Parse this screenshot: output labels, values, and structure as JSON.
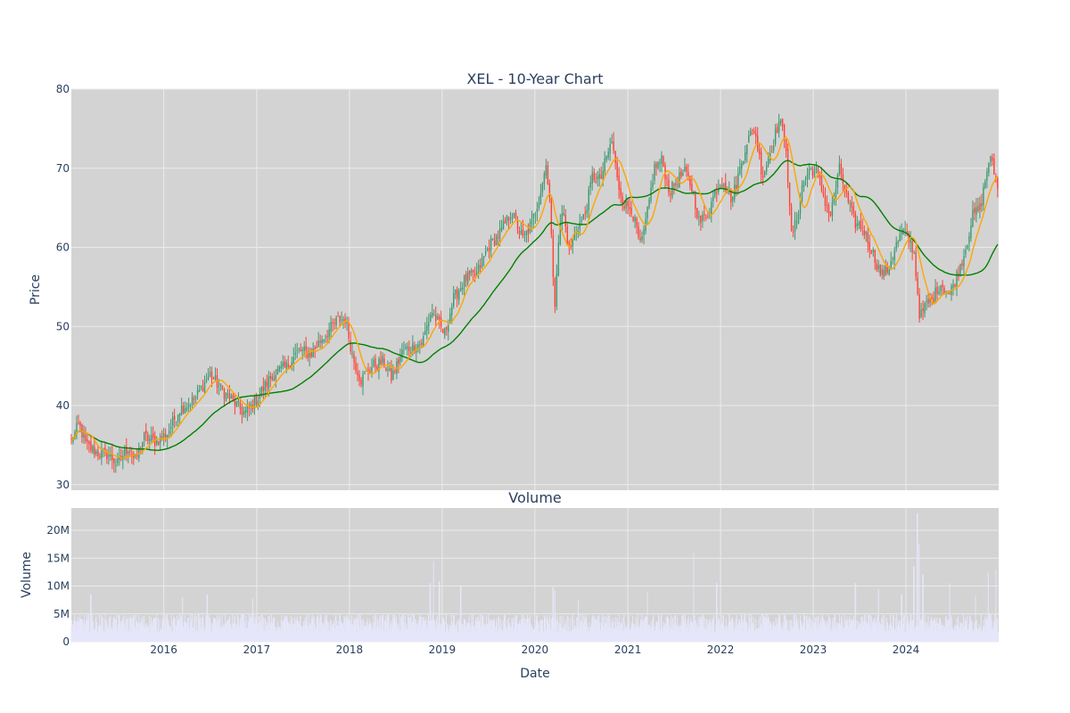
{
  "colors": {
    "plot_bg": "#d3d3d3",
    "grid": "#ebebeb",
    "increasing": "#3d9970",
    "decreasing": "#ff4136",
    "ma_short": "#ffa500",
    "ma_long": "#008000",
    "volume": "#e6e6fa",
    "text": "#2a3f5f"
  },
  "chart_data": [
    {
      "type": "candlestick",
      "title": "XEL - 10-Year Chart",
      "xlabel": "",
      "ylabel": "Price",
      "xlim": [
        "2015-01-02",
        "2024-12-31"
      ],
      "ylim": [
        29.3,
        80
      ],
      "yticks": [
        30,
        40,
        50,
        60,
        70,
        80
      ],
      "grid": true,
      "anchors": [
        [
          "2015-01-02",
          35.5
        ],
        [
          "2015-02-01",
          37.6
        ],
        [
          "2015-03-01",
          35.0
        ],
        [
          "2015-04-15",
          34.0
        ],
        [
          "2015-06-01",
          33.8
        ],
        [
          "2015-07-01",
          32.5
        ],
        [
          "2015-08-15",
          34.8
        ],
        [
          "2015-09-10",
          33.0
        ],
        [
          "2015-10-15",
          36.0
        ],
        [
          "2015-12-01",
          35.5
        ],
        [
          "2016-01-15",
          36.5
        ],
        [
          "2016-03-01",
          39.5
        ],
        [
          "2016-05-01",
          40.8
        ],
        [
          "2016-07-01",
          44.0
        ],
        [
          "2016-08-15",
          42.0
        ],
        [
          "2016-10-01",
          40.5
        ],
        [
          "2016-11-15",
          39.0
        ],
        [
          "2017-01-01",
          40.8
        ],
        [
          "2017-03-01",
          43.8
        ],
        [
          "2017-05-01",
          45.0
        ],
        [
          "2017-06-15",
          47.0
        ],
        [
          "2017-08-01",
          46.5
        ],
        [
          "2017-09-15",
          48.5
        ],
        [
          "2017-11-15",
          50.8
        ],
        [
          "2017-12-15",
          51.0
        ],
        [
          "2018-01-15",
          46.0
        ],
        [
          "2018-02-15",
          43.2
        ],
        [
          "2018-04-01",
          45.0
        ],
        [
          "2018-05-15",
          45.5
        ],
        [
          "2018-06-15",
          43.5
        ],
        [
          "2018-08-01",
          47.0
        ],
        [
          "2018-09-15",
          47.5
        ],
        [
          "2018-10-15",
          48.0
        ],
        [
          "2018-11-20",
          52.0
        ],
        [
          "2018-12-15",
          50.5
        ],
        [
          "2019-01-10",
          49.0
        ],
        [
          "2019-02-15",
          53.5
        ],
        [
          "2019-04-01",
          56.0
        ],
        [
          "2019-05-15",
          56.5
        ],
        [
          "2019-07-01",
          60.0
        ],
        [
          "2019-08-20",
          62.0
        ],
        [
          "2019-10-01",
          64.5
        ],
        [
          "2019-11-15",
          61.0
        ],
        [
          "2019-12-20",
          63.0
        ],
        [
          "2020-01-15",
          66.0
        ],
        [
          "2020-02-15",
          70.5
        ],
        [
          "2020-03-01",
          66.0
        ],
        [
          "2020-03-12",
          56.0
        ],
        [
          "2020-03-20",
          53.0
        ],
        [
          "2020-04-01",
          60.5
        ],
        [
          "2020-04-20",
          65.0
        ],
        [
          "2020-05-15",
          59.5
        ],
        [
          "2020-06-15",
          62.5
        ],
        [
          "2020-07-15",
          64.0
        ],
        [
          "2020-08-15",
          69.0
        ],
        [
          "2020-09-15",
          68.5
        ],
        [
          "2020-10-15",
          72.0
        ],
        [
          "2020-11-01",
          73.5
        ],
        [
          "2020-11-20",
          68.5
        ],
        [
          "2020-12-15",
          65.5
        ],
        [
          "2021-01-15",
          65.0
        ],
        [
          "2021-02-20",
          60.0
        ],
        [
          "2021-03-15",
          63.5
        ],
        [
          "2021-04-15",
          70.0
        ],
        [
          "2021-05-15",
          71.0
        ],
        [
          "2021-06-15",
          67.0
        ],
        [
          "2021-07-15",
          68.5
        ],
        [
          "2021-08-15",
          69.5
        ],
        [
          "2021-09-15",
          67.0
        ],
        [
          "2021-10-10",
          63.0
        ],
        [
          "2021-11-15",
          64.5
        ],
        [
          "2021-12-15",
          67.5
        ],
        [
          "2022-01-15",
          68.5
        ],
        [
          "2022-02-15",
          66.0
        ],
        [
          "2022-03-15",
          69.5
        ],
        [
          "2022-04-15",
          73.5
        ],
        [
          "2022-05-15",
          75.0
        ],
        [
          "2022-06-15",
          69.0
        ],
        [
          "2022-07-15",
          72.0
        ],
        [
          "2022-08-20",
          76.0
        ],
        [
          "2022-09-15",
          73.5
        ],
        [
          "2022-10-05",
          61.5
        ],
        [
          "2022-10-25",
          63.0
        ],
        [
          "2022-11-20",
          68.0
        ],
        [
          "2022-12-20",
          70.0
        ],
        [
          "2023-01-15",
          69.5
        ],
        [
          "2023-02-15",
          66.0
        ],
        [
          "2023-03-10",
          64.0
        ],
        [
          "2023-04-15",
          70.0
        ],
        [
          "2023-05-15",
          66.0
        ],
        [
          "2023-06-15",
          63.0
        ],
        [
          "2023-07-15",
          62.5
        ],
        [
          "2023-08-15",
          60.0
        ],
        [
          "2023-09-25",
          56.5
        ],
        [
          "2023-10-20",
          57.0
        ],
        [
          "2023-11-20",
          60.0
        ],
        [
          "2023-12-20",
          62.0
        ],
        [
          "2024-01-15",
          61.0
        ],
        [
          "2024-02-01",
          59.5
        ],
        [
          "2024-02-25",
          51.0
        ],
        [
          "2024-03-15",
          52.5
        ],
        [
          "2024-04-15",
          53.5
        ],
        [
          "2024-05-15",
          55.5
        ],
        [
          "2024-06-20",
          54.0
        ],
        [
          "2024-07-20",
          56.5
        ],
        [
          "2024-08-20",
          59.5
        ],
        [
          "2024-09-20",
          64.0
        ],
        [
          "2024-10-20",
          65.0
        ],
        [
          "2024-11-25",
          71.5
        ],
        [
          "2024-12-31",
          67.5
        ]
      ],
      "series": [
        {
          "kind": "candles",
          "increasing": "#3d9970",
          "decreasing": "#ff4136"
        },
        {
          "kind": "moving-average",
          "window": 50,
          "color": "#ffa500"
        },
        {
          "kind": "moving-average",
          "window": 200,
          "color": "#008000"
        }
      ]
    },
    {
      "type": "bar",
      "title": "Volume",
      "xlabel": "Date",
      "ylabel": "Volume",
      "ylim": [
        0,
        24000000
      ],
      "yticks": [
        0,
        5000000,
        10000000,
        15000000,
        20000000
      ],
      "ytick_labels": [
        "0",
        "5M",
        "10M",
        "15M",
        "20M"
      ],
      "xticks": [
        "2016-01-01",
        "2017-01-01",
        "2018-01-01",
        "2019-01-01",
        "2020-01-01",
        "2021-01-01",
        "2022-01-01",
        "2023-01-01",
        "2024-01-01"
      ],
      "xtick_labels": [
        "2016",
        "2017",
        "2018",
        "2019",
        "2020",
        "2021",
        "2022",
        "2023",
        "2024"
      ],
      "baseline_range": [
        1500000,
        5000000
      ],
      "spikes": [
        [
          "2015-03-20",
          8500000
        ],
        [
          "2016-03-15",
          8000000
        ],
        [
          "2016-06-20",
          8500000
        ],
        [
          "2016-12-16",
          7800000
        ],
        [
          "2018-11-15",
          10500000
        ],
        [
          "2018-11-28",
          14500000
        ],
        [
          "2018-12-21",
          10800000
        ],
        [
          "2019-03-15",
          10000000
        ],
        [
          "2020-03-13",
          9800000
        ],
        [
          "2020-03-20",
          9200000
        ],
        [
          "2020-06-20",
          7500000
        ],
        [
          "2021-03-19",
          8800000
        ],
        [
          "2021-09-17",
          16000000
        ],
        [
          "2021-12-17",
          10500000
        ],
        [
          "2023-06-16",
          10500000
        ],
        [
          "2023-09-15",
          9500000
        ],
        [
          "2023-12-15",
          8500000
        ],
        [
          "2024-02-01",
          13500000
        ],
        [
          "2024-02-15",
          23000000
        ],
        [
          "2024-02-22",
          17500000
        ],
        [
          "2024-03-08",
          12000000
        ],
        [
          "2024-06-21",
          10500000
        ],
        [
          "2024-10-01",
          8200000
        ],
        [
          "2024-11-20",
          12500000
        ],
        [
          "2024-12-20",
          13000000
        ]
      ]
    }
  ]
}
